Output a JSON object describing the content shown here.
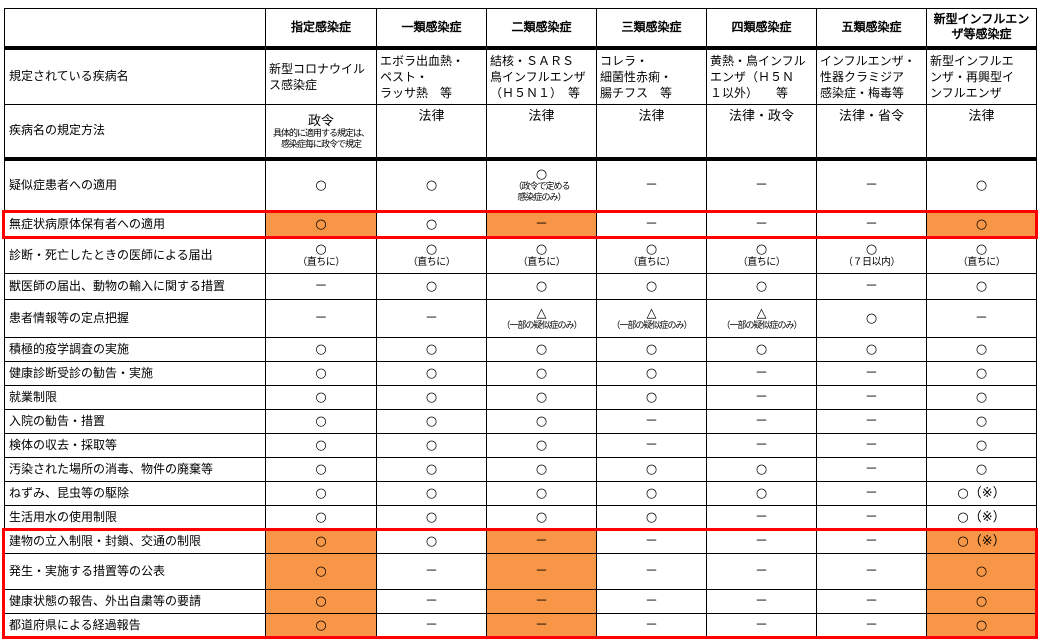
{
  "header": {
    "corner": "",
    "columns": [
      "指定感染症",
      "一類感染症",
      "二類感染症",
      "三類感染症",
      "四類感染症",
      "五類感染症",
      "新型インフルエンザ等感染症"
    ]
  },
  "diseases": {
    "label": "規定されている疾病名",
    "cells": [
      "新型コロナウイルス感染症",
      "エボラ出血熱・\nペスト・\nラッサ熱　等",
      "結核・ＳＡＲＳ\n鳥インフルエンザ\n（Ｈ５Ｎ１）　等",
      "コレラ・\n細菌性赤痢・\n腸チフス　等",
      "黄熱・鳥インフル\nエンザ（Ｈ５Ｎ\n１以外）　　等",
      "インフルエンザ・\n性器クラミジア\n感染症・梅毒等",
      "新型インフルエ\nンザ・再興型イ\nンフルエンザ"
    ]
  },
  "method": {
    "label": "疾病名の規定方法",
    "cells": [
      {
        "v": "政令",
        "note": "具体的に適用する規定は、\n感染症毎に政令で規定"
      },
      {
        "v": "法律"
      },
      {
        "v": "法律"
      },
      {
        "v": "法律"
      },
      {
        "v": "法律・政令"
      },
      {
        "v": "法律・省令"
      },
      {
        "v": "法律"
      }
    ]
  },
  "highlight_color": "#F79646",
  "box_color": "#FF0000",
  "rows": [
    {
      "label": "疑似症患者への適用",
      "cells": [
        {
          "v": "○"
        },
        {
          "v": "○"
        },
        {
          "v": "○",
          "note": "（政令で定める\n感染症のみ）"
        },
        {
          "v": "－"
        },
        {
          "v": "－"
        },
        {
          "v": "－"
        },
        {
          "v": "○"
        }
      ]
    },
    {
      "label": "無症状病原体保有者への適用",
      "highlight": [
        0,
        2,
        6
      ],
      "boxed": true,
      "cells": [
        {
          "v": "○"
        },
        {
          "v": "○"
        },
        {
          "v": "－"
        },
        {
          "v": "－"
        },
        {
          "v": "－"
        },
        {
          "v": "－"
        },
        {
          "v": "○"
        }
      ]
    },
    {
      "label": "診断・死亡したときの医師による届出",
      "cells": [
        {
          "v": "○",
          "note": "（直ちに）"
        },
        {
          "v": "○",
          "note": "（直ちに）"
        },
        {
          "v": "○",
          "note": "（直ちに）"
        },
        {
          "v": "○",
          "note": "（直ちに）"
        },
        {
          "v": "○",
          "note": "（直ちに）"
        },
        {
          "v": "○",
          "note": "（７日以内）"
        },
        {
          "v": "○",
          "note": "（直ちに）"
        }
      ]
    },
    {
      "label": "獣医師の届出、動物の輸入に関する措置",
      "cells": [
        {
          "v": "－"
        },
        {
          "v": "○"
        },
        {
          "v": "○"
        },
        {
          "v": "○"
        },
        {
          "v": "○"
        },
        {
          "v": "－"
        },
        {
          "v": "○"
        }
      ]
    },
    {
      "label": "患者情報等の定点把握",
      "cells": [
        {
          "v": "－"
        },
        {
          "v": "－"
        },
        {
          "v": "△",
          "note": "（一部の疑似症のみ）"
        },
        {
          "v": "△",
          "note": "（一部の疑似症のみ）"
        },
        {
          "v": "△",
          "note": "（一部の疑似症のみ）"
        },
        {
          "v": "○"
        },
        {
          "v": "－"
        }
      ]
    },
    {
      "label": "積極的疫学調査の実施",
      "cells": [
        {
          "v": "○"
        },
        {
          "v": "○"
        },
        {
          "v": "○"
        },
        {
          "v": "○"
        },
        {
          "v": "○"
        },
        {
          "v": "○"
        },
        {
          "v": "○"
        }
      ]
    },
    {
      "label": "健康診断受診の勧告・実施",
      "cells": [
        {
          "v": "○"
        },
        {
          "v": "○"
        },
        {
          "v": "○"
        },
        {
          "v": "○"
        },
        {
          "v": "－"
        },
        {
          "v": "－"
        },
        {
          "v": "○"
        }
      ]
    },
    {
      "label": "就業制限",
      "cells": [
        {
          "v": "○"
        },
        {
          "v": "○"
        },
        {
          "v": "○"
        },
        {
          "v": "○"
        },
        {
          "v": "－"
        },
        {
          "v": "－"
        },
        {
          "v": "○"
        }
      ]
    },
    {
      "label": "入院の勧告・措置",
      "cells": [
        {
          "v": "○"
        },
        {
          "v": "○"
        },
        {
          "v": "○"
        },
        {
          "v": "－"
        },
        {
          "v": "－"
        },
        {
          "v": "－"
        },
        {
          "v": "○"
        }
      ]
    },
    {
      "label": "検体の収去・採取等",
      "cells": [
        {
          "v": "○"
        },
        {
          "v": "○"
        },
        {
          "v": "○"
        },
        {
          "v": "－"
        },
        {
          "v": "－"
        },
        {
          "v": "－"
        },
        {
          "v": "○"
        }
      ]
    },
    {
      "label": "汚染された場所の消毒、物件の廃棄等",
      "cells": [
        {
          "v": "○"
        },
        {
          "v": "○"
        },
        {
          "v": "○"
        },
        {
          "v": "○"
        },
        {
          "v": "○"
        },
        {
          "v": "－"
        },
        {
          "v": "○"
        }
      ]
    },
    {
      "label": "ねずみ、昆虫等の駆除",
      "cells": [
        {
          "v": "○"
        },
        {
          "v": "○"
        },
        {
          "v": "○"
        },
        {
          "v": "○"
        },
        {
          "v": "○"
        },
        {
          "v": "－"
        },
        {
          "v": "○（※）"
        }
      ]
    },
    {
      "label": "生活用水の使用制限",
      "cells": [
        {
          "v": "○"
        },
        {
          "v": "○"
        },
        {
          "v": "○"
        },
        {
          "v": "○"
        },
        {
          "v": "－"
        },
        {
          "v": "－"
        },
        {
          "v": "○（※）"
        }
      ]
    },
    {
      "label": "建物の立入制限・封鎖、交通の制限",
      "highlight": [
        0,
        2,
        6
      ],
      "boxed": true,
      "cells": [
        {
          "v": "○"
        },
        {
          "v": "○"
        },
        {
          "v": "－"
        },
        {
          "v": "－"
        },
        {
          "v": "－"
        },
        {
          "v": "－"
        },
        {
          "v": "○（※）"
        }
      ]
    },
    {
      "label": "発生・実施する措置等の公表",
      "highlight": [
        0,
        2,
        6
      ],
      "boxed": true,
      "cells": [
        {
          "v": "○"
        },
        {
          "v": "－"
        },
        {
          "v": "－"
        },
        {
          "v": "－"
        },
        {
          "v": "－"
        },
        {
          "v": "－"
        },
        {
          "v": "○"
        }
      ]
    },
    {
      "label": "健康状態の報告、外出自粛等の要請",
      "highlight": [
        0,
        2,
        6
      ],
      "boxed": true,
      "cells": [
        {
          "v": "○"
        },
        {
          "v": "－"
        },
        {
          "v": "－"
        },
        {
          "v": "－"
        },
        {
          "v": "－"
        },
        {
          "v": "－"
        },
        {
          "v": "○"
        }
      ]
    },
    {
      "label": "都道府県による経過報告",
      "highlight": [
        0,
        2,
        6
      ],
      "boxed": true,
      "cells": [
        {
          "v": "○"
        },
        {
          "v": "－"
        },
        {
          "v": "－"
        },
        {
          "v": "－"
        },
        {
          "v": "－"
        },
        {
          "v": "－"
        },
        {
          "v": "○"
        }
      ]
    }
  ]
}
